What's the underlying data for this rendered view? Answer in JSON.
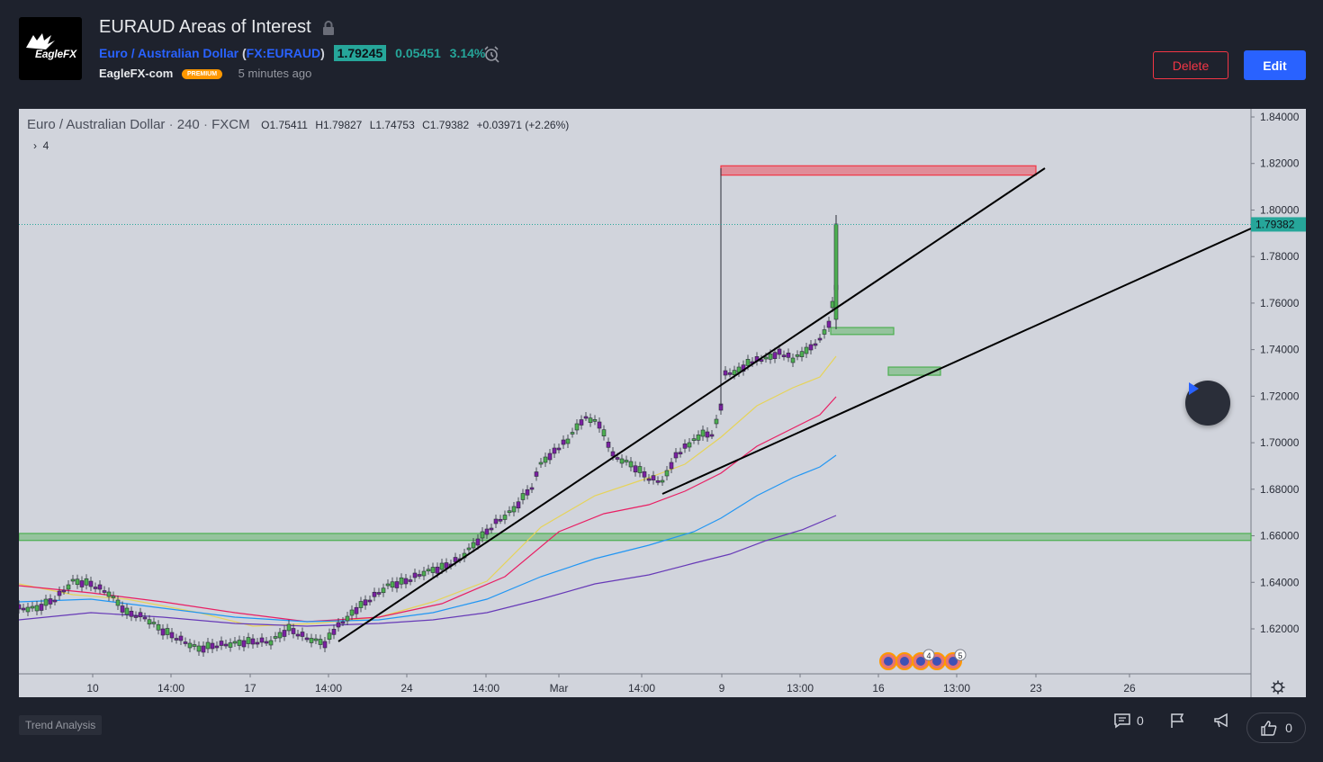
{
  "header": {
    "logo_text": "EagleFX",
    "title": "EURAUD Areas of Interest",
    "symbol_name": "Euro / Australian Dollar",
    "symbol_ticker": "FX:EURAUD",
    "last_price": "1.79245",
    "change_abs": "0.05451",
    "change_pct": "3.14%",
    "author": "EagleFX-com",
    "badge": "PREMIUM",
    "published_ago": "5 minutes ago",
    "delete_label": "Delete",
    "edit_label": "Edit"
  },
  "chart_legend": {
    "symbol": "Euro / Australian Dollar",
    "interval": "240",
    "exchange": "FXCM",
    "open": "O1.75411",
    "high": "H1.79827",
    "low": "L1.74753",
    "close": "C1.79382",
    "change": "+0.03971 (+2.26%)",
    "indicators_count": "4"
  },
  "footer": {
    "tag": "Trend Analysis",
    "comments_count": "0",
    "likes_count": "0"
  },
  "colors": {
    "background": "#1e222d",
    "chart_bg": "#d1d4dc",
    "accent": "#2962ff",
    "bull": "#26a69a",
    "bear": "#7b1fa2",
    "delete": "#f23645",
    "premium": "#ff9800"
  },
  "chart_data": {
    "type": "candlestick",
    "last_price_label": "1.79382",
    "price_axis": [
      "1.84000",
      "1.82000",
      "1.80000",
      "1.78000",
      "1.76000",
      "1.74000",
      "1.72000",
      "1.70000",
      "1.68000",
      "1.66000",
      "1.64000",
      "1.62000"
    ],
    "time_axis": [
      "10",
      "14:00",
      "17",
      "14:00",
      "24",
      "14:00",
      "Mar",
      "14:00",
      "9",
      "13:00",
      "16",
      "13:00",
      "23",
      "26"
    ],
    "ylim": [
      1.6,
      1.845
    ],
    "event_markers": [
      "4",
      "5"
    ],
    "zones": [
      {
        "kind": "resistance",
        "color": "#f23645",
        "low": 1.815,
        "high": 1.819
      },
      {
        "kind": "support",
        "color": "#4caf50",
        "low": 1.7465,
        "high": 1.7495
      },
      {
        "kind": "support",
        "color": "#4caf50",
        "low": 1.729,
        "high": 1.7325
      },
      {
        "kind": "support",
        "color": "#4caf50",
        "low": 1.658,
        "high": 1.661
      }
    ],
    "candles_ohlc_summary": {
      "open": 1.75411,
      "high": 1.79827,
      "low": 1.74753,
      "close": 1.79382
    }
  }
}
